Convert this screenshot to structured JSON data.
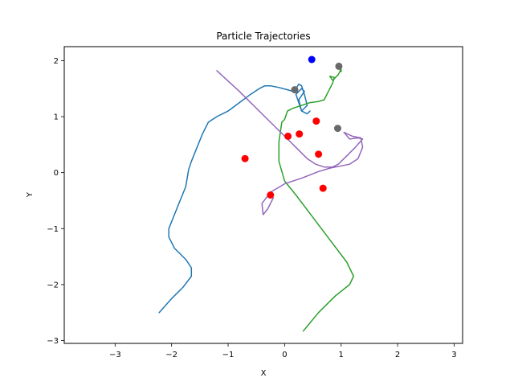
{
  "chart_data": {
    "type": "line",
    "title": "Particle Trajectories",
    "xlabel": "X",
    "ylabel": "Y",
    "xlim": [
      -3.9,
      3.15
    ],
    "ylim": [
      -3.05,
      2.25
    ],
    "xticks": [
      -3,
      -2,
      -1,
      0,
      1,
      2,
      3
    ],
    "yticks": [
      -3,
      -2,
      -1,
      0,
      1,
      2
    ],
    "grid": false,
    "legend": "none",
    "series": [
      {
        "color": "#1f77b4",
        "x": [
          -2.22,
          -2.0,
          -1.8,
          -1.65,
          -1.65,
          -1.75,
          -1.95,
          -2.05,
          -2.05,
          -1.95,
          -1.85,
          -1.75,
          -1.7,
          -1.65,
          -1.55,
          -1.45,
          -1.35,
          -1.2,
          -1.0,
          -0.8,
          -0.6,
          -0.45,
          -0.35,
          -0.25,
          -0.1,
          0.05,
          0.15,
          0.2,
          0.25,
          0.3,
          0.35,
          0.4,
          0.3,
          0.25,
          0.35,
          0.3,
          0.2,
          0.25,
          0.3,
          0.4,
          0.45
        ],
        "y": [
          -2.5,
          -2.25,
          -2.05,
          -1.85,
          -1.7,
          -1.55,
          -1.35,
          -1.15,
          -1.0,
          -0.75,
          -0.5,
          -0.25,
          0.05,
          0.2,
          0.45,
          0.7,
          0.9,
          1.0,
          1.1,
          1.25,
          1.4,
          1.5,
          1.55,
          1.55,
          1.52,
          1.48,
          1.45,
          1.5,
          1.58,
          1.55,
          1.4,
          1.2,
          1.1,
          1.3,
          1.45,
          1.5,
          1.4,
          1.25,
          1.1,
          1.05,
          1.1
        ]
      },
      {
        "color": "#2ca02c",
        "x": [
          0.33,
          0.6,
          0.9,
          1.15,
          1.22,
          1.1,
          0.8,
          0.5,
          0.2,
          0.0,
          -0.1,
          -0.1,
          -0.05,
          0.0,
          0.05,
          0.15,
          0.3,
          0.45,
          0.6,
          0.7,
          0.75,
          0.8,
          0.85,
          0.88,
          0.8,
          0.85,
          0.95,
          1.0,
          1.0,
          0.95
        ],
        "y": [
          -2.83,
          -2.5,
          -2.2,
          -2.0,
          -1.85,
          -1.6,
          -1.2,
          -0.8,
          -0.4,
          -0.15,
          0.2,
          0.55,
          0.9,
          0.95,
          1.1,
          1.15,
          1.2,
          1.25,
          1.27,
          1.3,
          1.4,
          1.5,
          1.6,
          1.7,
          1.72,
          1.65,
          1.75,
          1.85,
          1.8,
          1.9
        ]
      },
      {
        "color": "#9467bd",
        "x": [
          -1.2,
          -0.8,
          -0.4,
          -0.05,
          0.2,
          0.4,
          0.55,
          0.7,
          0.85,
          0.95,
          1.1,
          1.25,
          1.38,
          1.3,
          1.15,
          1.05,
          1.2,
          1.35,
          1.38,
          1.3,
          1.15,
          1.0,
          0.8,
          0.6,
          0.3,
          0.0,
          -0.25,
          -0.4,
          -0.38,
          -0.3,
          -0.2
        ],
        "y": [
          1.82,
          1.45,
          1.05,
          0.7,
          0.45,
          0.25,
          0.15,
          0.1,
          0.1,
          0.15,
          0.3,
          0.45,
          0.6,
          0.62,
          0.6,
          0.72,
          0.65,
          0.62,
          0.45,
          0.25,
          0.15,
          0.12,
          0.08,
          0.02,
          -0.1,
          -0.2,
          -0.35,
          -0.55,
          -0.75,
          -0.65,
          -0.45
        ]
      }
    ],
    "points": [
      {
        "group": "blue",
        "color": "#0000ff",
        "x": 0.48,
        "y": 2.02
      },
      {
        "group": "red",
        "color": "#ff0000",
        "x": -0.7,
        "y": 0.25
      },
      {
        "group": "red",
        "color": "#ff0000",
        "x": -0.25,
        "y": -0.4
      },
      {
        "group": "red",
        "color": "#ff0000",
        "x": 0.06,
        "y": 0.65
      },
      {
        "group": "red",
        "color": "#ff0000",
        "x": 0.26,
        "y": 0.69
      },
      {
        "group": "red",
        "color": "#ff0000",
        "x": 0.56,
        "y": 0.92
      },
      {
        "group": "red",
        "color": "#ff0000",
        "x": 0.6,
        "y": 0.33
      },
      {
        "group": "red",
        "color": "#ff0000",
        "x": 0.68,
        "y": -0.28
      },
      {
        "group": "gray",
        "color": "#696969",
        "x": 0.18,
        "y": 1.48
      },
      {
        "group": "gray",
        "color": "#696969",
        "x": 0.96,
        "y": 1.9
      },
      {
        "group": "gray",
        "color": "#696969",
        "x": 0.94,
        "y": 0.79
      }
    ]
  }
}
